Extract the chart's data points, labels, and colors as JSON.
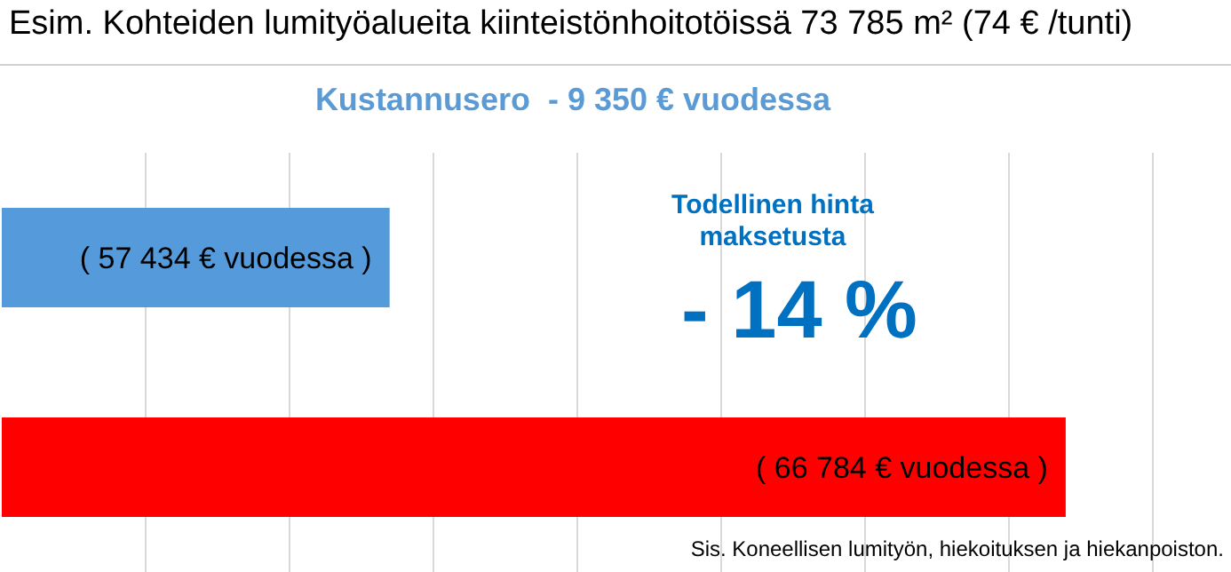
{
  "chart_data": {
    "type": "bar",
    "orientation": "horizontal",
    "xlim": [
      52070,
      69070
    ],
    "title": "Esim. Kohteiden lumityöalueita kiinteistönhoitotöissä 73 785 m² (74 € /tunti)",
    "subtitle": "Kustannusero  - 9 350 € vuodessa",
    "categories": [
      null,
      null
    ],
    "values": [
      57434,
      66784
    ],
    "colors": [
      "#559bdb",
      "#ff0000"
    ],
    "value_labels": [
      "( 57 434 € vuodessa )",
      "( 66 784 € vuodessa )"
    ],
    "annotations": [
      "Todellinen hinta maksetusta",
      "- 14 %",
      "Sis. Koneellisen lumityön, hiekoituksen ja hiekanpoiston."
    ],
    "grid": "x"
  }
}
